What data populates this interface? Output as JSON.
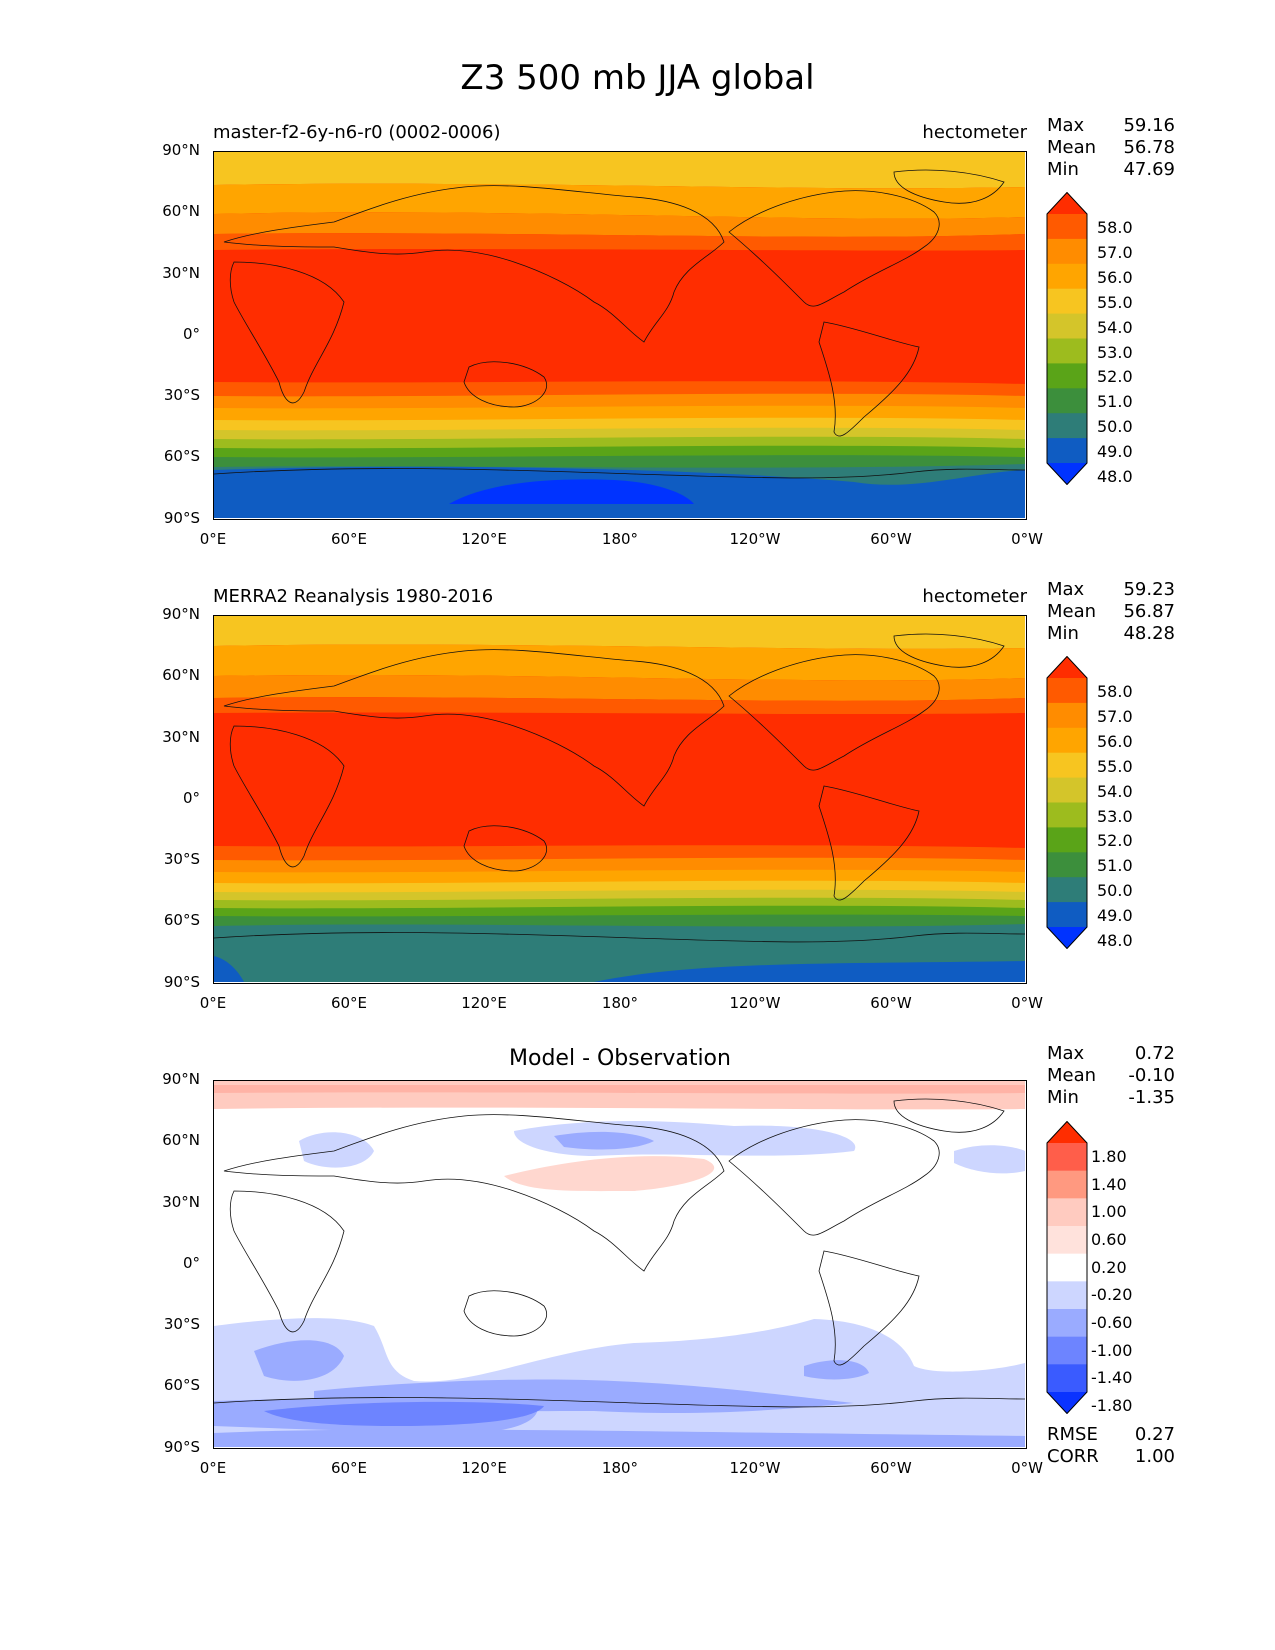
{
  "title": "Z3 500 mb JJA global",
  "x_ticks": [
    "0°E",
    "60°E",
    "120°E",
    "180°",
    "120°W",
    "60°W",
    "0°W"
  ],
  "y_ticks": [
    "90°N",
    "60°N",
    "30°N",
    "0°",
    "30°S",
    "60°S",
    "90°S"
  ],
  "panels": [
    {
      "title_left": "master-f2-6y-n6-r0 (0002-0006)",
      "title_right": "hectometer",
      "title_center": "",
      "stats": [
        {
          "label": "Max",
          "value": "59.16"
        },
        {
          "label": "Mean",
          "value": "56.78"
        },
        {
          "label": "Min",
          "value": "47.69"
        }
      ],
      "colorbar_labels": [
        "58.0",
        "57.0",
        "56.0",
        "55.0",
        "54.0",
        "53.0",
        "52.0",
        "51.0",
        "50.0",
        "49.0",
        "48.0"
      ],
      "colorbar_colors": [
        "#ff2d00",
        "#ff5a00",
        "#ff8c00",
        "#ffa500",
        "#f7c520",
        "#d4c52a",
        "#9dbc1e",
        "#5aa418",
        "#3c8f3c",
        "#2e7d78",
        "#0f5cc2",
        "#0033ff"
      ]
    },
    {
      "title_left": "MERRA2 Reanalysis 1980-2016",
      "title_right": "hectometer",
      "title_center": "",
      "stats": [
        {
          "label": "Max",
          "value": "59.23"
        },
        {
          "label": "Mean",
          "value": "56.87"
        },
        {
          "label": "Min",
          "value": "48.28"
        }
      ],
      "colorbar_labels": [
        "58.0",
        "57.0",
        "56.0",
        "55.0",
        "54.0",
        "53.0",
        "52.0",
        "51.0",
        "50.0",
        "49.0",
        "48.0"
      ],
      "colorbar_colors": [
        "#ff2d00",
        "#ff5a00",
        "#ff8c00",
        "#ffa500",
        "#f7c520",
        "#d4c52a",
        "#9dbc1e",
        "#5aa418",
        "#3c8f3c",
        "#2e7d78",
        "#0f5cc2",
        "#0033ff"
      ]
    },
    {
      "title_left": "",
      "title_right": "",
      "title_center": "Model - Observation",
      "stats": [
        {
          "label": "Max",
          "value": "0.72"
        },
        {
          "label": "Mean",
          "value": "-0.10"
        },
        {
          "label": "Min",
          "value": "-1.35"
        }
      ],
      "colorbar_labels": [
        "1.80",
        "1.40",
        "1.00",
        "0.60",
        "0.20",
        "-0.20",
        "-0.60",
        "-1.00",
        "-1.40",
        "-1.80"
      ],
      "colorbar_colors": [
        "#ff2d00",
        "#ff5e4a",
        "#ff9980",
        "#ffcbc0",
        "#ffe2dc",
        "#ffffff",
        "#cdd6ff",
        "#9aabff",
        "#6d84ff",
        "#3a5bff",
        "#0a33ff"
      ],
      "bottom_stats": [
        {
          "label": "RMSE",
          "value": "0.27"
        },
        {
          "label": "CORR",
          "value": "1.00"
        }
      ]
    }
  ]
}
